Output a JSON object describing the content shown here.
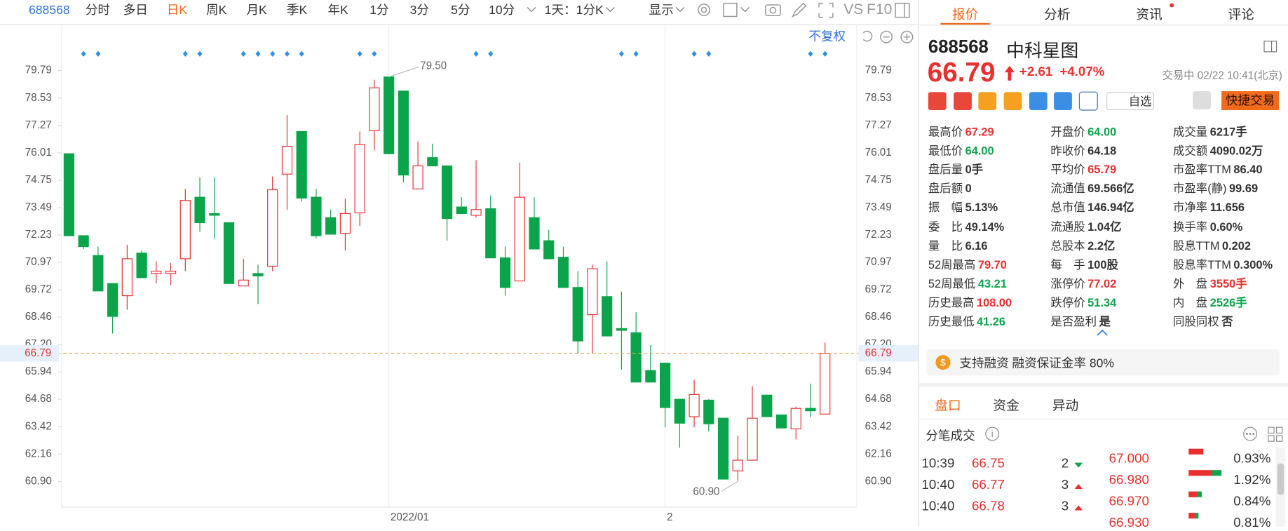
{
  "toolbar": {
    "code": "688568",
    "periods": [
      "分时",
      "多日",
      "日K",
      "周K",
      "月K",
      "季K",
      "年K",
      "1分",
      "3分",
      "5分",
      "10分"
    ],
    "interval": "1天：1分K",
    "display": "显示",
    "vs": "VS",
    "f10": "F10"
  },
  "chart": {
    "type": "candlestick",
    "adjust": "不复权",
    "up_color": "#e8312f",
    "down_color": "#0ba44a",
    "ylim": [
      59.8,
      80.77
    ],
    "yticks": [
      79.79,
      78.53,
      77.27,
      76.01,
      74.75,
      73.49,
      72.23,
      70.97,
      69.72,
      68.46,
      {
        "value": 67.2,
        "label": "67.20"
      },
      65.94,
      64.68,
      63.42,
      62.16,
      {
        "value": 60.9,
        "label": "60.90"
      }
    ],
    "x_labels": [
      "2022/01",
      "2"
    ],
    "last": {
      "value": 66.79,
      "label": "66.79"
    },
    "max": {
      "value": 79.5,
      "label": "79.50"
    },
    "min": {
      "value": 60.9,
      "label": "60.90"
    },
    "ohlc": [
      [
        75.97,
        75.97,
        72.2,
        72.2
      ],
      [
        72.2,
        72.2,
        71.59,
        71.7
      ],
      [
        71.29,
        71.7,
        69.66,
        69.66
      ],
      [
        70,
        70,
        67.7,
        68.49
      ],
      [
        69.44,
        71.78,
        68.8,
        71.14
      ],
      [
        71.4,
        71.52,
        70.27,
        70.27
      ],
      [
        70.46,
        71.02,
        70,
        70.57
      ],
      [
        70.46,
        70.95,
        69.93,
        70.57
      ],
      [
        71.14,
        74.35,
        70.57,
        73.82
      ],
      [
        73.97,
        74.88,
        72.38,
        72.8
      ],
      [
        73.22,
        74.88,
        72.08,
        73.14
      ],
      [
        72.8,
        72.8,
        70,
        70
      ],
      [
        69.89,
        71.14,
        69.89,
        70.16
      ],
      [
        70.46,
        70.87,
        69.06,
        70.35
      ],
      [
        70.8,
        74.92,
        70.57,
        74.31
      ],
      [
        75.03,
        77.75,
        73.4,
        76.31
      ],
      [
        76.99,
        76.99,
        73.78,
        73.93
      ],
      [
        73.97,
        74.35,
        72.08,
        72.2
      ],
      [
        73.03,
        73.4,
        72.27,
        72.27
      ],
      [
        72.31,
        73.9,
        71.52,
        73.22
      ],
      [
        73.25,
        76.99,
        72.65,
        76.39
      ],
      [
        77.03,
        79.37,
        76.13,
        79
      ],
      [
        79.5,
        79.5,
        75.97,
        75.97
      ],
      [
        78.85,
        78.85,
        74.65,
        74.99
      ],
      [
        74.35,
        76.54,
        74.35,
        75.41
      ],
      [
        75.79,
        76.43,
        75.41,
        75.41
      ],
      [
        75.41,
        75.41,
        71.97,
        72.99
      ],
      [
        73.52,
        73.97,
        73.22,
        73.22
      ],
      [
        73.14,
        75.67,
        73.03,
        73.4
      ],
      [
        73.44,
        74.05,
        71.18,
        71.18
      ],
      [
        71.18,
        71.7,
        69.44,
        69.82
      ],
      [
        70.12,
        75.56,
        70.12,
        73.97
      ],
      [
        73.03,
        73.97,
        71.59,
        71.59
      ],
      [
        71.97,
        72.46,
        71.14,
        71.14
      ],
      [
        71.21,
        71.7,
        69.82,
        69.82
      ],
      [
        69.82,
        70.57,
        66.79,
        67.36
      ],
      [
        68.57,
        70.87,
        66.79,
        70.68
      ],
      [
        69.4,
        71.02,
        67.59,
        67.59
      ],
      [
        67.93,
        69.63,
        66.04,
        67.85
      ],
      [
        67.74,
        68.68,
        65.47,
        65.47
      ],
      [
        66,
        67.17,
        65.47,
        65.47
      ],
      [
        66.34,
        66.34,
        63.39,
        64.3
      ],
      [
        64.68,
        64.68,
        62.45,
        63.58
      ],
      [
        63.88,
        65.58,
        63.39,
        64.9
      ],
      [
        64.64,
        64.68,
        63.2,
        63.55
      ],
      [
        63.81,
        63.81,
        61.01,
        61.01
      ],
      [
        61.39,
        63.01,
        60.94,
        61.88
      ],
      [
        61.88,
        65.28,
        61.88,
        63.81
      ],
      [
        64.87,
        64.9,
        63.88,
        63.88
      ],
      [
        63.96,
        63.96,
        63.36,
        63.36
      ],
      [
        63.32,
        64.34,
        62.83,
        64.26
      ],
      [
        64.26,
        65.4,
        63.85,
        64.15
      ],
      [
        64,
        67.29,
        64,
        66.79
      ]
    ]
  },
  "panel": {
    "tabs": [
      "报价",
      "分析",
      "资讯",
      "评论"
    ],
    "code": "688568",
    "name": "中科星图",
    "price": "66.79",
    "change": "+2.61",
    "change_pct": "+4.07%",
    "status": "交易中 02/22 10:41(北京)",
    "watch": "自选",
    "trade": "快捷交易",
    "stats": [
      [
        {
          "label": "最高价",
          "value": "67.29",
          "color": "#e8312f"
        },
        {
          "label": "最低价",
          "value": "64.00",
          "color": "#0ba44a"
        },
        {
          "label": "盘后量",
          "value": "0手"
        },
        {
          "label": "盘后额",
          "value": "0"
        },
        {
          "label": "振　幅",
          "value": "5.13%"
        },
        {
          "label": "委　比",
          "value": "49.14%"
        },
        {
          "label": "量　比",
          "value": "6.16"
        },
        {
          "label": "52周最高",
          "value": "79.70",
          "color": "#e8312f"
        },
        {
          "label": "52周最低",
          "value": "43.21",
          "color": "#0ba44a"
        },
        {
          "label": "历史最高",
          "value": "108.00",
          "color": "#e8312f"
        },
        {
          "label": "历史最低",
          "value": "41.26",
          "color": "#0ba44a"
        }
      ],
      [
        {
          "label": "开盘价",
          "value": "64.00",
          "color": "#0ba44a"
        },
        {
          "label": "昨收价",
          "value": "64.18"
        },
        {
          "label": "平均价",
          "value": "65.79",
          "color": "#e8312f"
        },
        {
          "label": "流通值",
          "value": "69.566亿"
        },
        {
          "label": "总市值",
          "value": "146.94亿"
        },
        {
          "label": "流通股",
          "value": "1.04亿"
        },
        {
          "label": "总股本",
          "value": "2.2亿"
        },
        {
          "label": "每　手",
          "value": "100股"
        },
        {
          "label": "涨停价",
          "value": "77.02",
          "color": "#e8312f"
        },
        {
          "label": "跌停价",
          "value": "51.34",
          "color": "#0ba44a"
        },
        {
          "label": "是否盈利",
          "value": "是"
        }
      ],
      [
        {
          "label": "成交量",
          "value": "6217手"
        },
        {
          "label": "成交额",
          "value": "4090.02万"
        },
        {
          "label": "市盈率TTM",
          "value": "86.40"
        },
        {
          "label": "市盈率(静)",
          "value": "99.69"
        },
        {
          "label": "市净率",
          "value": "11.656"
        },
        {
          "label": "换手率",
          "value": "0.60%"
        },
        {
          "label": "股息TTM",
          "value": "0.202"
        },
        {
          "label": "股息率TTM",
          "value": "0.300%"
        },
        {
          "label": "外　盘",
          "value": "3550手",
          "color": "#e8312f"
        },
        {
          "label": "内　盘",
          "value": "2526手",
          "color": "#0ba44a"
        },
        {
          "label": "同股同权",
          "value": "否"
        }
      ]
    ],
    "margin": "支持融资 融资保证金率 80%",
    "sub_tabs": [
      "盘口",
      "资金",
      "异动"
    ],
    "trades_title": "分笔成交",
    "trades": [
      {
        "time": "10:39",
        "price": "66.75",
        "volume": "2",
        "direction": "down"
      },
      {
        "time": "10:40",
        "price": "66.77",
        "volume": "3",
        "direction": "up"
      },
      {
        "time": "10:40",
        "price": "66.78",
        "volume": "3",
        "direction": "up"
      }
    ],
    "book": [
      {
        "price": "67.000",
        "share": "0.93%"
      },
      {
        "price": "66.980",
        "share": "1.92%"
      },
      {
        "price": "66.970",
        "share": "0.84%"
      },
      {
        "price": "66.930",
        "share": "0.81%"
      }
    ]
  }
}
